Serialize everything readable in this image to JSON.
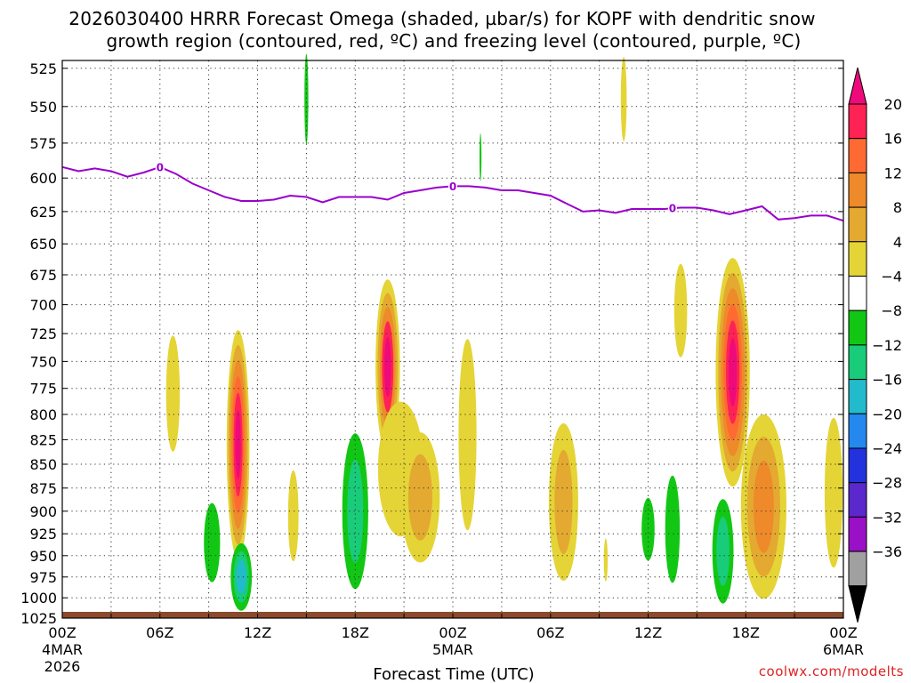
{
  "chart_data": {
    "type": "time-pressure contour",
    "title_line1": "2026030400 HRRR Forecast Omega (shaded, µbar/s) for KOPF with dendritic snow",
    "title_line2": "growth region (contoured, red, ºC) and freezing level (contoured, purple, ºC)",
    "xlabel": "Forecast Time (UTC)",
    "credit": "coolwx.com/modelts",
    "xlim": [
      0,
      48
    ],
    "ylim": [
      1025,
      520
    ],
    "y_ticks": [
      525,
      550,
      575,
      600,
      625,
      650,
      675,
      700,
      725,
      750,
      775,
      800,
      825,
      850,
      875,
      900,
      925,
      950,
      975,
      1000,
      1025
    ],
    "x_ticks": [
      {
        "hour": 0,
        "label": "00Z",
        "sub1": "4MAR",
        "sub2": "2026"
      },
      {
        "hour": 6,
        "label": "06Z"
      },
      {
        "hour": 12,
        "label": "12Z"
      },
      {
        "hour": 18,
        "label": "18Z"
      },
      {
        "hour": 24,
        "label": "00Z",
        "sub1": "5MAR"
      },
      {
        "hour": 30,
        "label": "06Z"
      },
      {
        "hour": 36,
        "label": "12Z"
      },
      {
        "hour": 42,
        "label": "18Z"
      },
      {
        "hour": 48,
        "label": "00Z",
        "sub1": "6MAR"
      }
    ],
    "freezing_level": {
      "label": "0",
      "label_hours": [
        6,
        24,
        37.5
      ],
      "points": [
        [
          0,
          592
        ],
        [
          1,
          595
        ],
        [
          2,
          593
        ],
        [
          3,
          595
        ],
        [
          4,
          599
        ],
        [
          5,
          596
        ],
        [
          6,
          592
        ],
        [
          7,
          597
        ],
        [
          8,
          604
        ],
        [
          9,
          609
        ],
        [
          10,
          614
        ],
        [
          11,
          617
        ],
        [
          12,
          617
        ],
        [
          13,
          616
        ],
        [
          14,
          613
        ],
        [
          15,
          614
        ],
        [
          16,
          618
        ],
        [
          17,
          614
        ],
        [
          18,
          614
        ],
        [
          19,
          614
        ],
        [
          20,
          616
        ],
        [
          21,
          611
        ],
        [
          22,
          609
        ],
        [
          23,
          607
        ],
        [
          24,
          606
        ],
        [
          25,
          606
        ],
        [
          26,
          607
        ],
        [
          27,
          609
        ],
        [
          28,
          609
        ],
        [
          29,
          611
        ],
        [
          30,
          613
        ],
        [
          31,
          619
        ],
        [
          32,
          625
        ],
        [
          33,
          624
        ],
        [
          34,
          626
        ],
        [
          35,
          623
        ],
        [
          36,
          623
        ],
        [
          37,
          623
        ],
        [
          38,
          622
        ],
        [
          39,
          622
        ],
        [
          40,
          624
        ],
        [
          41,
          627
        ],
        [
          42,
          624
        ],
        [
          43,
          621
        ],
        [
          44,
          631
        ],
        [
          45,
          630
        ],
        [
          46,
          628
        ],
        [
          47,
          628
        ],
        [
          48,
          632
        ]
      ]
    },
    "colorbar": {
      "labels": [
        "20",
        "16",
        "12",
        "8",
        "4",
        "−4",
        "−8",
        "−12",
        "−16",
        "−20",
        "−24",
        "−28",
        "−32",
        "−36"
      ],
      "colors": [
        "#ff2255",
        "#ff6a33",
        "#ee8a2a",
        "#e3a930",
        "#e5d436",
        "#ffffff",
        "#12c714",
        "#18cc7a",
        "#22bbcc",
        "#2488ee",
        "#2233dd",
        "#5a28cc",
        "#9a10c6",
        "#a0a0a0"
      ],
      "top_color": "#ee0a7a",
      "bottom_color": "#000000"
    },
    "omega_regions": [
      {
        "t": 6.8,
        "p": 780,
        "dt": 0.42,
        "dp": 55,
        "levels": [
          "#e5d436"
        ]
      },
      {
        "t": 10.8,
        "p": 830,
        "dt": 0.7,
        "dp": 115,
        "levels": [
          "#e5d436",
          "#e3a930",
          "#ee8a2a",
          "#ff6a33",
          "#ff2255",
          "#ee0a7a"
        ]
      },
      {
        "t": 14.2,
        "p": 905,
        "dt": 0.32,
        "dp": 50,
        "levels": [
          "#e5d436"
        ]
      },
      {
        "t": 20.0,
        "p": 755,
        "dt": 0.75,
        "dp": 80,
        "levels": [
          "#e5d436",
          "#e3a930",
          "#ee8a2a",
          "#ff2255",
          "#ee0a7a"
        ]
      },
      {
        "t": 20.8,
        "p": 855,
        "dt": 1.4,
        "dp": 70,
        "levels": [
          "#e5d436"
        ]
      },
      {
        "t": 22.0,
        "p": 885,
        "dt": 1.2,
        "dp": 70,
        "levels": [
          "#e5d436",
          "#e3a930"
        ]
      },
      {
        "t": 24.9,
        "p": 820,
        "dt": 0.55,
        "dp": 95,
        "levels": [
          "#e5d436"
        ]
      },
      {
        "t": 30.8,
        "p": 890,
        "dt": 0.9,
        "dp": 85,
        "levels": [
          "#e5d436",
          "#e3a930"
        ]
      },
      {
        "t": 33.4,
        "p": 955,
        "dt": 0.12,
        "dp": 25,
        "levels": [
          "#e5d436"
        ]
      },
      {
        "t": 38.0,
        "p": 705,
        "dt": 0.4,
        "dp": 40,
        "levels": [
          "#e5d436"
        ]
      },
      {
        "t": 41.2,
        "p": 760,
        "dt": 1.05,
        "dp": 105,
        "levels": [
          "#e5d436",
          "#e3a930",
          "#ee8a2a",
          "#ff6a33",
          "#ff2255",
          "#ee0a7a"
        ]
      },
      {
        "t": 43.1,
        "p": 895,
        "dt": 1.4,
        "dp": 100,
        "levels": [
          "#e5d436",
          "#e3a930",
          "#ee8a2a"
        ]
      },
      {
        "t": 47.4,
        "p": 880,
        "dt": 0.55,
        "dp": 80,
        "levels": [
          "#e5d436"
        ]
      },
      {
        "t": 34.5,
        "p": 545,
        "dt": 0.18,
        "dp": 28,
        "levels": [
          "#e5d436"
        ]
      },
      {
        "t": 15.0,
        "p": 545,
        "dt": 0.12,
        "dp": 30,
        "levels": [
          "#12c714"
        ]
      },
      {
        "t": 25.7,
        "p": 585,
        "dt": 0.06,
        "dp": 17,
        "levels": [
          "#12c714"
        ]
      },
      {
        "t": 9.2,
        "p": 935,
        "dt": 0.5,
        "dp": 45,
        "levels": [
          "#12c714"
        ]
      },
      {
        "t": 11.0,
        "p": 975,
        "dt": 0.65,
        "dp": 40,
        "levels": [
          "#12c714",
          "#18cc7a",
          "#22bbcc"
        ]
      },
      {
        "t": 18.0,
        "p": 900,
        "dt": 0.8,
        "dp": 85,
        "levels": [
          "#12c714",
          "#18cc7a"
        ]
      },
      {
        "t": 36.0,
        "p": 920,
        "dt": 0.4,
        "dp": 35,
        "levels": [
          "#12c714"
        ]
      },
      {
        "t": 37.5,
        "p": 920,
        "dt": 0.45,
        "dp": 60,
        "levels": [
          "#12c714"
        ]
      },
      {
        "t": 40.6,
        "p": 945,
        "dt": 0.65,
        "dp": 60,
        "levels": [
          "#12c714",
          "#18cc7a"
        ]
      }
    ]
  }
}
